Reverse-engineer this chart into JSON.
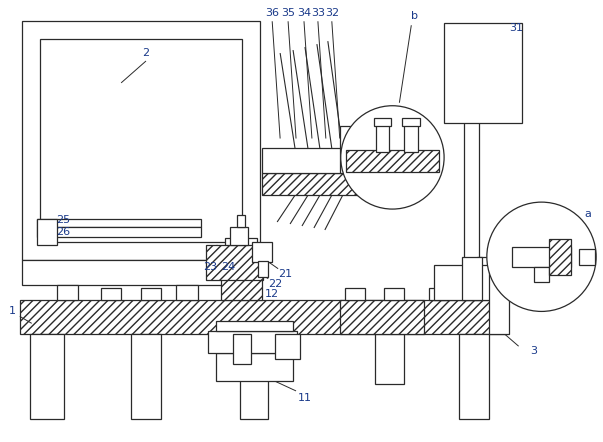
{
  "bg_color": "#ffffff",
  "lc": "#2a2a2a",
  "label_color": "#1a3a8a",
  "lw": 0.9,
  "figsize": [
    6.03,
    4.42
  ],
  "dpi": 100
}
